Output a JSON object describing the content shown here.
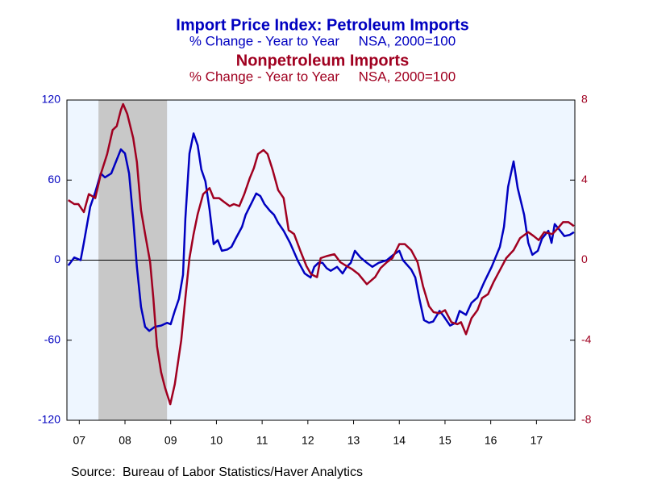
{
  "chart_data": {
    "type": "line",
    "title": "Import Price Index: Petroleum Imports",
    "subtitle": "% Change - Year to Year     NSA, 2000=100",
    "title2": "Nonpetroleum Imports",
    "subtitle2": "% Change - Year to Year     NSA, 2000=100",
    "source": "Source:  Bureau of Labor Statistics/Haver Analytics",
    "xlim": [
      2007.23,
      2018.34
    ],
    "xticks": [
      {
        "value": 2007.5,
        "label": "07"
      },
      {
        "value": 2008.5,
        "label": "08"
      },
      {
        "value": 2009.5,
        "label": "09"
      },
      {
        "value": 2010.5,
        "label": "10"
      },
      {
        "value": 2011.5,
        "label": "11"
      },
      {
        "value": 2012.5,
        "label": "12"
      },
      {
        "value": 2013.5,
        "label": "13"
      },
      {
        "value": 2014.5,
        "label": "14"
      },
      {
        "value": 2015.5,
        "label": "15"
      },
      {
        "value": 2016.5,
        "label": "16"
      },
      {
        "value": 2017.5,
        "label": "17"
      }
    ],
    "recession": [
      2007.92,
      2009.42
    ],
    "ylim": [
      -120,
      120
    ],
    "yticks": [
      -120,
      -60,
      0,
      60,
      120
    ],
    "y2lim": [
      -8,
      8
    ],
    "y2ticks": [
      -8,
      -4,
      0,
      4,
      8
    ],
    "series": [
      {
        "name": "Petroleum Imports",
        "color": "#0000c0",
        "axis": "y",
        "x": [
          2007.26,
          2007.39,
          2007.53,
          2007.6,
          2007.74,
          2007.85,
          2007.97,
          2008.06,
          2008.2,
          2008.41,
          2008.5,
          2008.59,
          2008.68,
          2008.76,
          2008.85,
          2008.94,
          2009.03,
          2009.15,
          2009.29,
          2009.42,
          2009.5,
          2009.59,
          2009.68,
          2009.77,
          2009.82,
          2009.91,
          2010.0,
          2010.09,
          2010.17,
          2010.26,
          2010.35,
          2010.44,
          2010.53,
          2010.62,
          2010.74,
          2010.83,
          2010.92,
          2011.06,
          2011.14,
          2011.27,
          2011.37,
          2011.46,
          2011.55,
          2011.67,
          2011.76,
          2011.85,
          2011.97,
          2012.11,
          2012.29,
          2012.43,
          2012.56,
          2012.64,
          2012.73,
          2012.82,
          2012.91,
          2013.0,
          2013.14,
          2013.26,
          2013.35,
          2013.44,
          2013.53,
          2013.65,
          2013.79,
          2013.91,
          2014.05,
          2014.23,
          2014.37,
          2014.5,
          2014.58,
          2014.76,
          2014.85,
          2014.94,
          2015.04,
          2015.15,
          2015.24,
          2015.38,
          2015.47,
          2015.61,
          2015.73,
          2015.82,
          2015.96,
          2016.08,
          2016.21,
          2016.35,
          2016.52,
          2016.7,
          2016.79,
          2016.88,
          2017.0,
          2017.09,
          2017.23,
          2017.32,
          2017.41,
          2017.53,
          2017.62,
          2017.76,
          2017.83,
          2017.9,
          2018.02,
          2018.11,
          2018.23,
          2018.32
        ],
        "values": [
          -4,
          2,
          0,
          13,
          40,
          51,
          65,
          62,
          65,
          83,
          80,
          65,
          31,
          -5,
          -35,
          -50,
          -53,
          -50,
          -49,
          -47,
          -48,
          -38,
          -29,
          -11,
          31,
          80,
          95,
          86,
          68,
          59,
          38,
          12,
          15,
          7,
          8,
          10,
          16,
          25,
          34,
          43,
          50,
          48,
          42,
          37,
          34,
          28,
          22,
          13,
          -1,
          -10,
          -13,
          -5,
          -2,
          -2,
          -6,
          -8,
          -5,
          -10,
          -5,
          -2,
          7,
          2,
          -2,
          -5,
          -2,
          0,
          4,
          7,
          0,
          -7,
          -13,
          -29,
          -45,
          -47,
          -46,
          -38,
          -42,
          -49,
          -47,
          -38,
          -41,
          -32,
          -28,
          -17,
          -5,
          10,
          25,
          55,
          74,
          54,
          34,
          13,
          4,
          7,
          16,
          22,
          13,
          27,
          22,
          18,
          19,
          21
        ]
      },
      {
        "name": "Nonpetroleum Imports",
        "color": "#a00020",
        "axis": "y2",
        "x": [
          2007.26,
          2007.39,
          2007.48,
          2007.6,
          2007.71,
          2007.85,
          2007.97,
          2008.11,
          2008.23,
          2008.32,
          2008.41,
          2008.46,
          2008.55,
          2008.68,
          2008.76,
          2008.85,
          2008.94,
          2009.05,
          2009.12,
          2009.2,
          2009.29,
          2009.38,
          2009.49,
          2009.59,
          2009.73,
          2009.82,
          2009.91,
          2010.0,
          2010.09,
          2010.21,
          2010.35,
          2010.44,
          2010.56,
          2010.67,
          2010.79,
          2010.88,
          2011.0,
          2011.11,
          2011.23,
          2011.32,
          2011.41,
          2011.53,
          2011.62,
          2011.73,
          2011.85,
          2011.97,
          2012.08,
          2012.2,
          2012.33,
          2012.47,
          2012.57,
          2012.7,
          2012.78,
          2012.91,
          2013.08,
          2013.21,
          2013.35,
          2013.47,
          2013.61,
          2013.79,
          2013.97,
          2014.09,
          2014.23,
          2014.35,
          2014.5,
          2014.62,
          2014.76,
          2014.9,
          2015.02,
          2015.15,
          2015.25,
          2015.38,
          2015.5,
          2015.64,
          2015.77,
          2015.85,
          2015.96,
          2016.08,
          2016.21,
          2016.31,
          2016.44,
          2016.56,
          2016.7,
          2016.84,
          2017.0,
          2017.14,
          2017.32,
          2017.44,
          2017.55,
          2017.67,
          2017.85,
          2017.97,
          2018.08,
          2018.2,
          2018.32
        ],
        "values": [
          3.0,
          2.8,
          2.8,
          2.4,
          3.3,
          3.1,
          4.3,
          5.3,
          6.5,
          6.7,
          7.5,
          7.8,
          7.3,
          6.1,
          4.9,
          2.5,
          1.3,
          -0.1,
          -1.9,
          -4.3,
          -5.6,
          -6.4,
          -7.2,
          -6.2,
          -4.0,
          -1.9,
          0.1,
          1.3,
          2.3,
          3.3,
          3.6,
          3.1,
          3.1,
          2.9,
          2.7,
          2.8,
          2.7,
          3.3,
          4.1,
          4.6,
          5.3,
          5.5,
          5.3,
          4.5,
          3.5,
          3.1,
          1.5,
          1.3,
          0.5,
          -0.3,
          -0.7,
          -0.85,
          0.1,
          0.2,
          0.3,
          -0.1,
          -0.3,
          -0.45,
          -0.7,
          -1.2,
          -0.85,
          -0.4,
          -0.1,
          0.1,
          0.8,
          0.8,
          0.5,
          -0.1,
          -1.3,
          -2.3,
          -2.6,
          -2.65,
          -2.5,
          -3.1,
          -3.2,
          -3.1,
          -3.7,
          -2.9,
          -2.5,
          -1.9,
          -1.7,
          -1.1,
          -0.5,
          0.1,
          0.5,
          1.1,
          1.4,
          1.2,
          1.0,
          1.4,
          1.3,
          1.6,
          1.9,
          1.9,
          1.7
        ]
      }
    ]
  }
}
